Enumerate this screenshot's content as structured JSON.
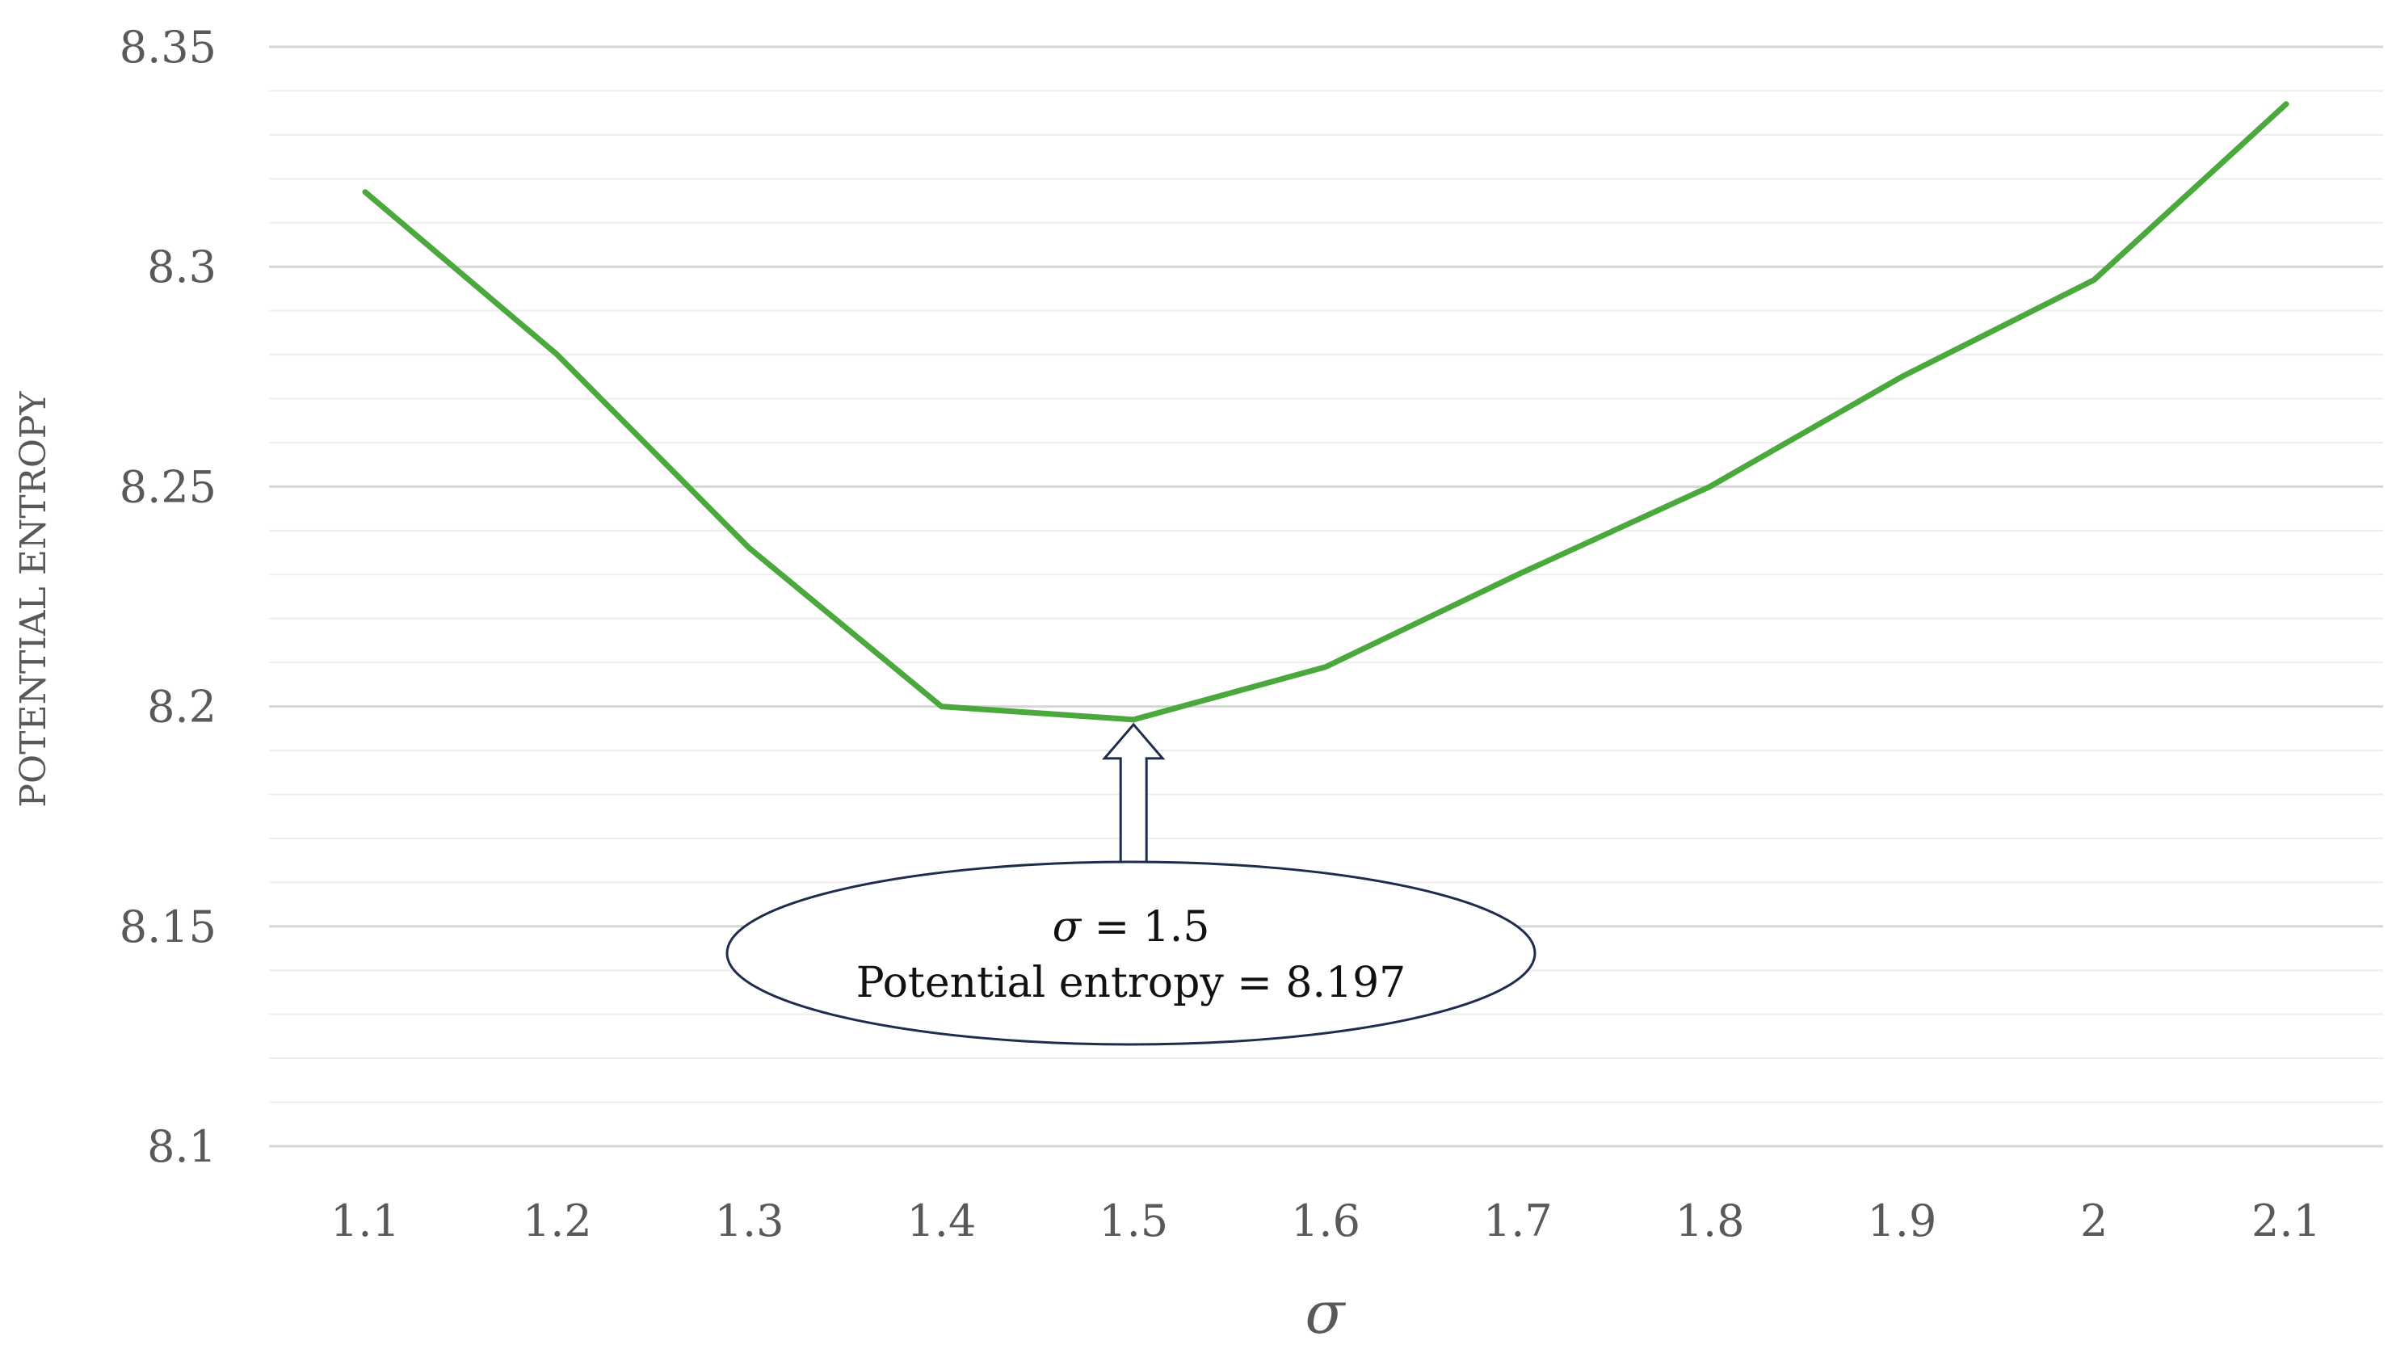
{
  "chart_data": {
    "type": "line",
    "title": "",
    "xlabel": "σ",
    "ylabel": "POTENTIAL ENTROPY",
    "categories": [
      "1.1",
      "1.2",
      "1.3",
      "1.4",
      "1.5",
      "1.6",
      "1.7",
      "1.8",
      "1.9",
      "2",
      "2.1"
    ],
    "series": [
      {
        "values": [
          8.317,
          8.28,
          8.236,
          8.2,
          8.197,
          8.209,
          8.23,
          8.25,
          8.275,
          8.297,
          8.337
        ],
        "color": "#4AA83C"
      }
    ],
    "ylim": [
      8.1,
      8.35
    ],
    "yticks": [
      "8.1",
      "8.15",
      "8.2",
      "8.25",
      "8.3",
      "8.35"
    ],
    "grid": true,
    "minor_grid": true,
    "legend": "none",
    "annotation": {
      "x": "1.5",
      "y": 8.197,
      "symbol": "σ",
      "line1_rest": " = 1.5",
      "line2": "Potential entropy = 8.197",
      "shape": "ellipse-with-arrow"
    }
  }
}
